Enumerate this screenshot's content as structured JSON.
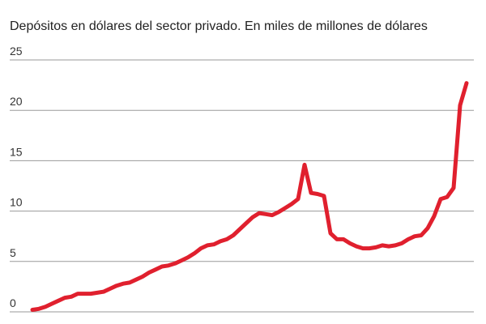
{
  "chart_data": {
    "type": "line",
    "title": "Depósitos en dólares del sector privado. En miles de millones de dólares",
    "series": [
      {
        "color": "#e0202e",
        "values": [
          0.2,
          0.3,
          0.5,
          0.8,
          1.1,
          1.4,
          1.5,
          1.8,
          1.8,
          1.8,
          1.9,
          2.0,
          2.3,
          2.6,
          2.8,
          2.9,
          3.2,
          3.5,
          3.9,
          4.2,
          4.5,
          4.6,
          4.8,
          5.1,
          5.4,
          5.8,
          6.3,
          6.6,
          6.7,
          7.0,
          7.2,
          7.6,
          8.2,
          8.8,
          9.4,
          9.8,
          9.7,
          9.6,
          9.9,
          10.3,
          10.7,
          11.2,
          14.6,
          11.8,
          11.7,
          11.5,
          7.8,
          7.2,
          7.2,
          6.8,
          6.5,
          6.3,
          6.3,
          6.4,
          6.6,
          6.5,
          6.6,
          6.8,
          7.2,
          7.5,
          7.6,
          8.3,
          9.5,
          11.2,
          11.4,
          12.3,
          20.5,
          22.7
        ]
      }
    ],
    "ylim": [
      0,
      25
    ],
    "yticks": [
      0,
      5,
      10,
      15,
      20,
      25
    ],
    "grid": true
  }
}
